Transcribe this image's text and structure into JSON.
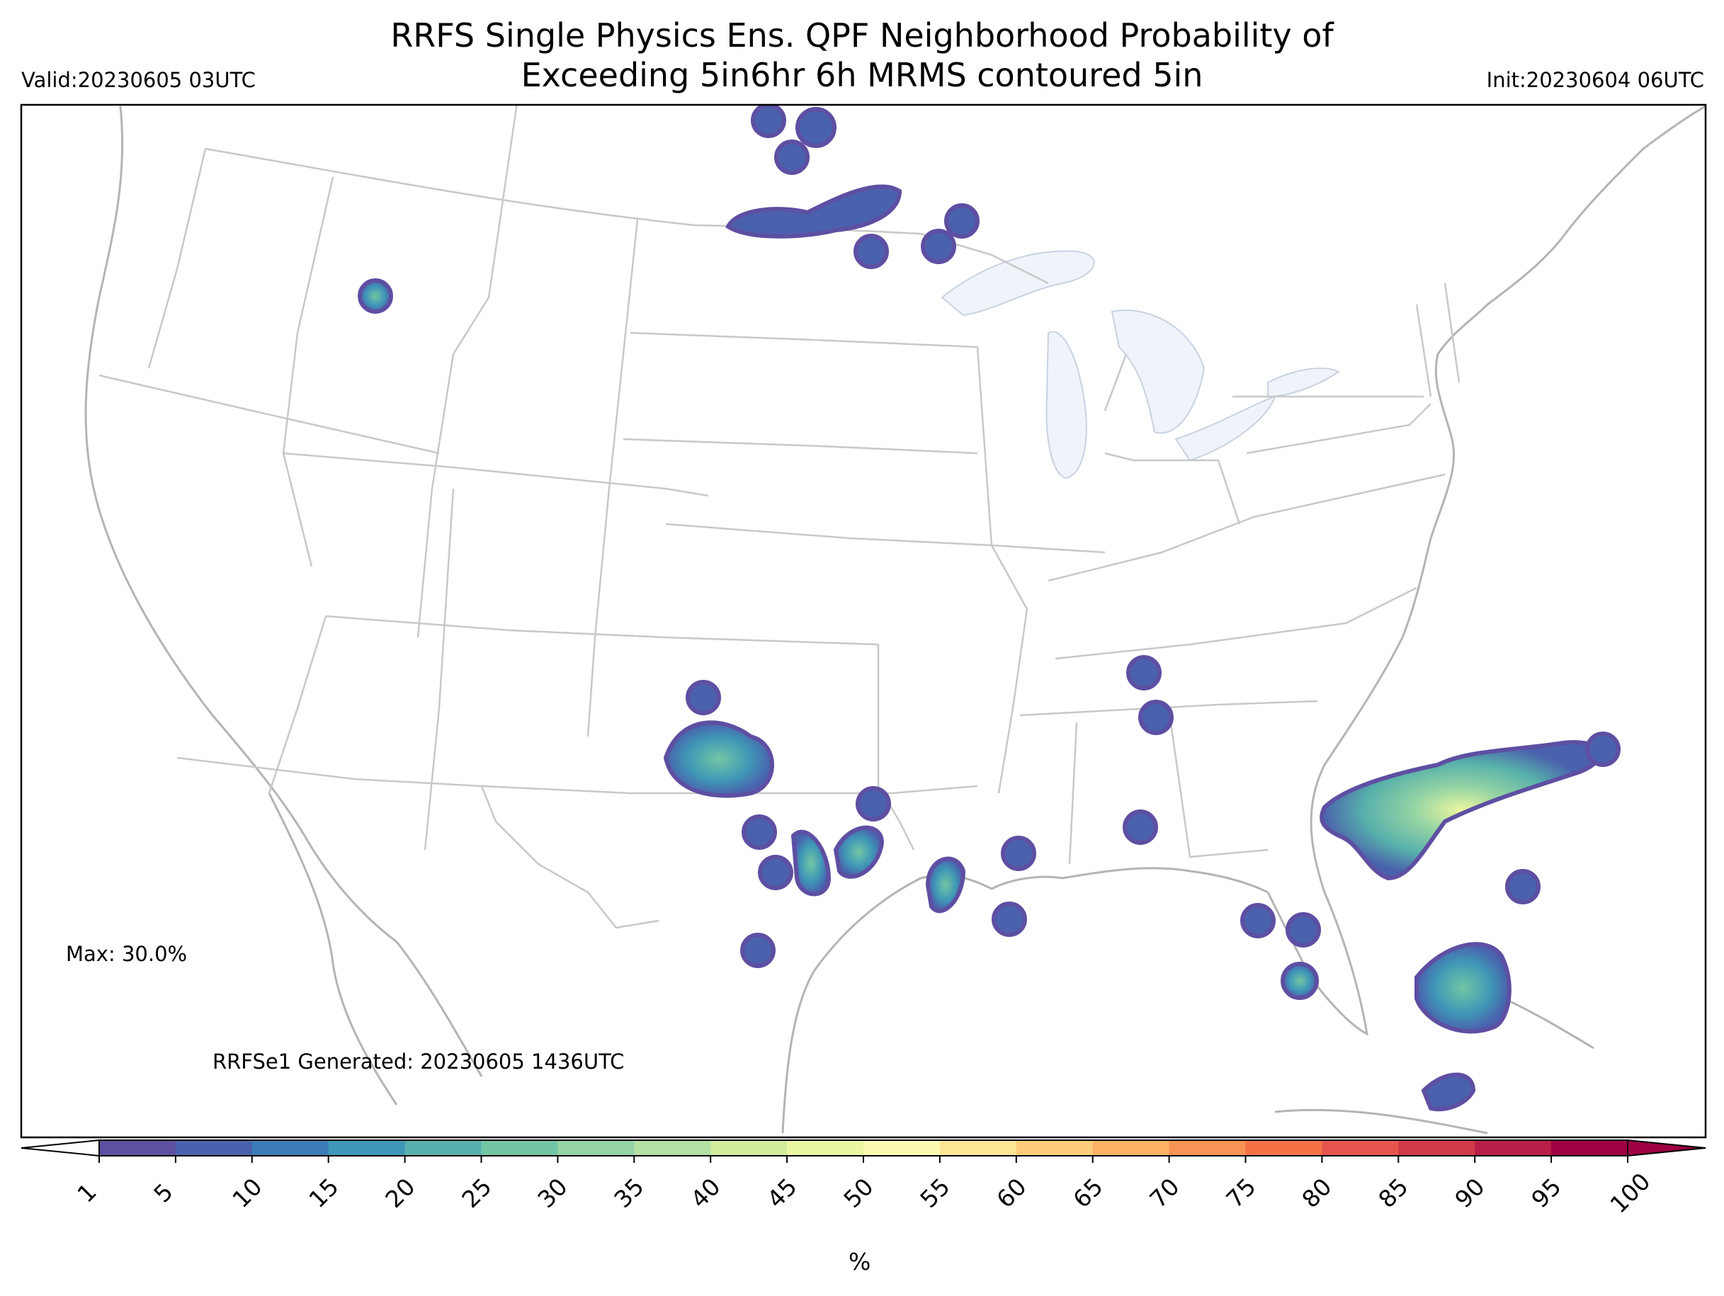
{
  "header": {
    "title_line1": "RRFS Single Physics Ens. QPF Neighborhood Probability of",
    "title_line2": "Exceeding 5in6hr 6h MRMS contoured 5in",
    "valid": "Valid:20230605 03UTC",
    "init": "Init:20230604 06UTC"
  },
  "annotations": {
    "max": "Max: 30.0%",
    "generated": "RRFSe1 Generated: 20230605 1436UTC"
  },
  "colorbar": {
    "ticks": [
      "1",
      "5",
      "10",
      "15",
      "20",
      "25",
      "30",
      "35",
      "40",
      "45",
      "50",
      "55",
      "60",
      "65",
      "70",
      "75",
      "80",
      "85",
      "90",
      "95",
      "100"
    ],
    "colors": [
      "#5e4fa2",
      "#4a61ad",
      "#3b7cb8",
      "#3f97b7",
      "#57b0ab",
      "#72c6a4",
      "#93d3a4",
      "#b3e0a3",
      "#d1ec9c",
      "#ebf6a0",
      "#fbf8b0",
      "#fee595",
      "#fdcc7a",
      "#fdb164",
      "#f99355",
      "#f47245",
      "#e5554d",
      "#d1394a",
      "#b91e48",
      "#9e0142"
    ],
    "unit": "%"
  },
  "colors": {
    "state_lines": "#c8c8c8",
    "coast": "#b4b4b4",
    "lakes": "#f0f4fa",
    "outline": "#000000"
  }
}
